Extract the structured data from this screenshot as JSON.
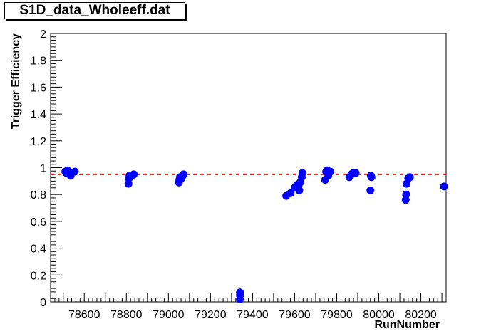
{
  "chart_data": {
    "type": "scatter",
    "title": "S1D_data_Wholeeff.dat",
    "xlabel": "RunNumber",
    "ylabel": "Trigger Efficiency",
    "xlim": [
      78440,
      80320
    ],
    "ylim": [
      0,
      2
    ],
    "x_ticks": [
      78600,
      78800,
      79000,
      79200,
      79400,
      79600,
      79800,
      80000,
      80200
    ],
    "y_ticks": [
      0,
      0.2,
      0.4,
      0.6,
      0.8,
      1,
      1.2,
      1.4,
      1.6,
      1.8,
      2
    ],
    "reference_line": {
      "y": 0.95,
      "color": "#ff0000",
      "style": "dashed"
    },
    "marker_color": "#0000ff",
    "grid": false,
    "points": [
      {
        "x": 78510,
        "y": 0.97
      },
      {
        "x": 78515,
        "y": 0.96
      },
      {
        "x": 78520,
        "y": 0.98
      },
      {
        "x": 78535,
        "y": 0.94
      },
      {
        "x": 78555,
        "y": 0.97
      },
      {
        "x": 78810,
        "y": 0.88
      },
      {
        "x": 78812,
        "y": 0.92
      },
      {
        "x": 78815,
        "y": 0.94
      },
      {
        "x": 78825,
        "y": 0.94
      },
      {
        "x": 78835,
        "y": 0.95
      },
      {
        "x": 79050,
        "y": 0.89
      },
      {
        "x": 79052,
        "y": 0.91
      },
      {
        "x": 79055,
        "y": 0.93
      },
      {
        "x": 79062,
        "y": 0.92
      },
      {
        "x": 79068,
        "y": 0.94
      },
      {
        "x": 79072,
        "y": 0.95
      },
      {
        "x": 79340,
        "y": 0.02
      },
      {
        "x": 79340,
        "y": 0.05
      },
      {
        "x": 79340,
        "y": 0.07
      },
      {
        "x": 79560,
        "y": 0.79
      },
      {
        "x": 79580,
        "y": 0.81
      },
      {
        "x": 79600,
        "y": 0.85
      },
      {
        "x": 79610,
        "y": 0.87
      },
      {
        "x": 79618,
        "y": 0.86
      },
      {
        "x": 79622,
        "y": 0.83
      },
      {
        "x": 79626,
        "y": 0.89
      },
      {
        "x": 79634,
        "y": 0.93
      },
      {
        "x": 79637,
        "y": 0.96
      },
      {
        "x": 79745,
        "y": 0.91
      },
      {
        "x": 79750,
        "y": 0.97
      },
      {
        "x": 79755,
        "y": 0.98
      },
      {
        "x": 79760,
        "y": 0.94
      },
      {
        "x": 79770,
        "y": 0.97
      },
      {
        "x": 79860,
        "y": 0.93
      },
      {
        "x": 79870,
        "y": 0.95
      },
      {
        "x": 79878,
        "y": 0.96
      },
      {
        "x": 79890,
        "y": 0.96
      },
      {
        "x": 79960,
        "y": 0.83
      },
      {
        "x": 79962,
        "y": 0.94
      },
      {
        "x": 79965,
        "y": 0.93
      },
      {
        "x": 80128,
        "y": 0.76
      },
      {
        "x": 80130,
        "y": 0.8
      },
      {
        "x": 80132,
        "y": 0.88
      },
      {
        "x": 80140,
        "y": 0.92
      },
      {
        "x": 80148,
        "y": 0.93
      },
      {
        "x": 80310,
        "y": 0.86
      }
    ]
  }
}
